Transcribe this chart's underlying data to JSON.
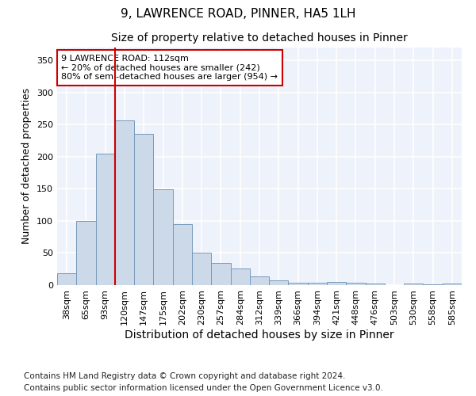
{
  "title": "9, LAWRENCE ROAD, PINNER, HA5 1LH",
  "subtitle": "Size of property relative to detached houses in Pinner",
  "xlabel": "Distribution of detached houses by size in Pinner",
  "ylabel": "Number of detached properties",
  "categories": [
    "38sqm",
    "65sqm",
    "93sqm",
    "120sqm",
    "147sqm",
    "175sqm",
    "202sqm",
    "230sqm",
    "257sqm",
    "284sqm",
    "312sqm",
    "339sqm",
    "366sqm",
    "394sqm",
    "421sqm",
    "448sqm",
    "476sqm",
    "503sqm",
    "530sqm",
    "558sqm",
    "585sqm"
  ],
  "values": [
    18,
    100,
    205,
    257,
    235,
    149,
    95,
    51,
    34,
    26,
    14,
    8,
    4,
    4,
    5,
    4,
    2,
    0,
    2,
    1,
    2
  ],
  "bar_color": "#ccd9e8",
  "bar_edge_color": "#7799bb",
  "vline_x_index": 3,
  "vline_color": "#cc0000",
  "annotation_text": "9 LAWRENCE ROAD: 112sqm\n← 20% of detached houses are smaller (242)\n80% of semi-detached houses are larger (954) →",
  "annotation_box_facecolor": "#ffffff",
  "annotation_box_edgecolor": "#cc0000",
  "ylim": [
    0,
    370
  ],
  "plot_bg_color": "#eef2fb",
  "fig_bg_color": "#ffffff",
  "grid_color": "#ffffff",
  "footer_line1": "Contains HM Land Registry data © Crown copyright and database right 2024.",
  "footer_line2": "Contains public sector information licensed under the Open Government Licence v3.0.",
  "title_fontsize": 11,
  "subtitle_fontsize": 10,
  "xlabel_fontsize": 10,
  "ylabel_fontsize": 9,
  "tick_fontsize": 8,
  "annot_fontsize": 8,
  "footer_fontsize": 7.5
}
